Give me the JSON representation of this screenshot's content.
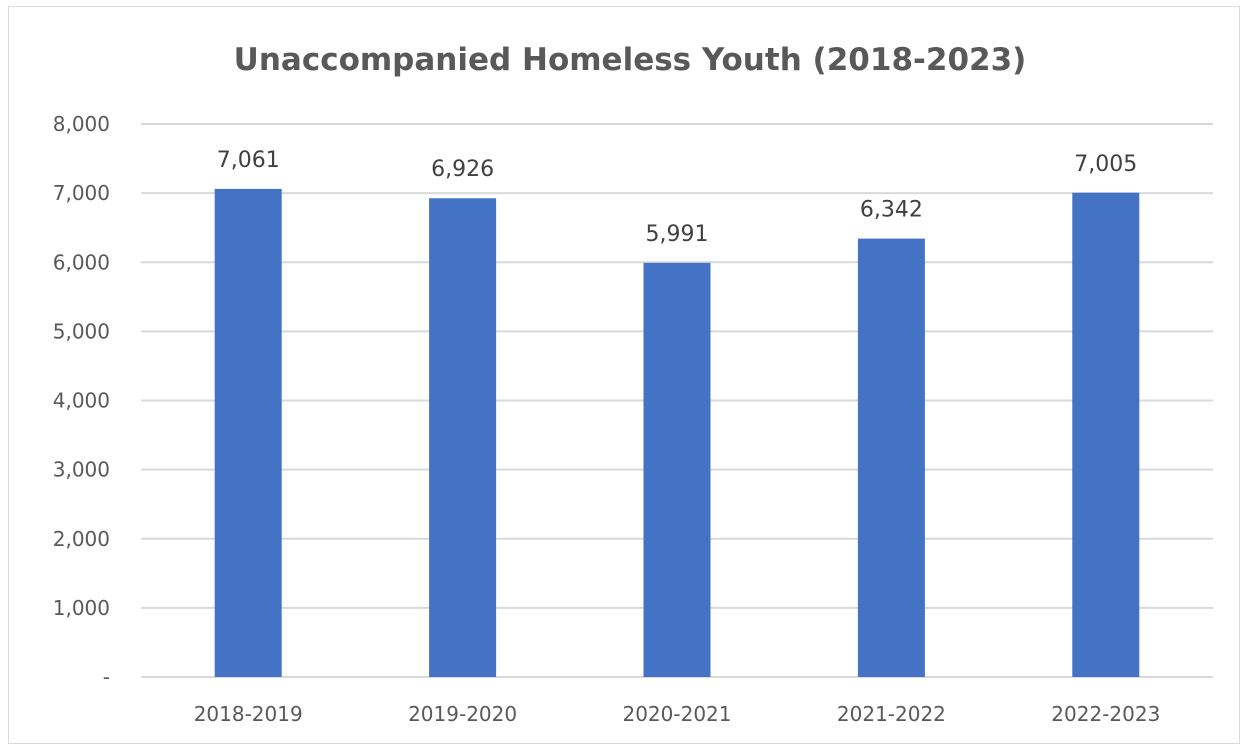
{
  "chart_data": {
    "type": "bar",
    "title": "Unaccompanied Homeless Youth (2018-2023)",
    "xlabel": "",
    "ylabel": "",
    "categories": [
      "2018-2019",
      "2019-2020",
      "2020-2021",
      "2021-2022",
      "2022-2023"
    ],
    "values": [
      7061,
      6926,
      5991,
      6342,
      7005
    ],
    "data_labels": [
      "7,061",
      "6,926",
      "5,991",
      "6,342",
      "7,005"
    ],
    "ylim": [
      0,
      8000
    ],
    "y_ticks": [
      {
        "value": 0,
        "label": "-"
      },
      {
        "value": 1000,
        "label": "1,000"
      },
      {
        "value": 2000,
        "label": "2,000"
      },
      {
        "value": 3000,
        "label": "3,000"
      },
      {
        "value": 4000,
        "label": "4,000"
      },
      {
        "value": 5000,
        "label": "5,000"
      },
      {
        "value": 6000,
        "label": "6,000"
      },
      {
        "value": 7000,
        "label": "7,000"
      },
      {
        "value": 8000,
        "label": "8,000"
      }
    ],
    "grid": true,
    "legend": "none",
    "colors": {
      "bar": "#4472c4",
      "grid": "#d9d9d9",
      "text": "#595959",
      "title": "#595959"
    }
  }
}
